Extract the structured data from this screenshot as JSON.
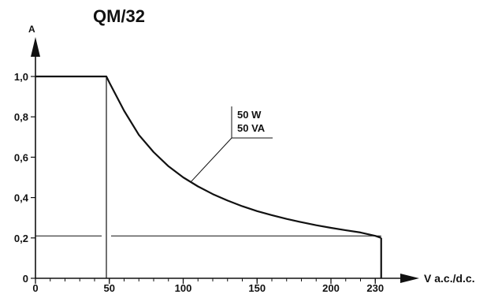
{
  "chart_data": {
    "type": "line",
    "title": "QM/32",
    "xlabel": "V a.c./d.c.",
    "ylabel": "A",
    "xlim": [
      0,
      235
    ],
    "ylim": [
      0,
      1.0
    ],
    "x_ticks": [
      0,
      50,
      100,
      150,
      200,
      230
    ],
    "x_tick_labels": [
      "0",
      "50",
      "100",
      "150",
      "200",
      "230"
    ],
    "y_ticks": [
      0,
      0.2,
      0.4,
      0.6,
      0.8,
      1.0
    ],
    "y_tick_labels": [
      "0",
      "0,2",
      "0,4",
      "0,6",
      "0,8",
      "1,0"
    ],
    "grid": false,
    "series": [
      {
        "values_x": [
          0,
          48,
          50,
          60,
          70,
          80,
          90,
          100,
          110,
          120,
          130,
          140,
          150,
          160,
          170,
          180,
          190,
          200,
          210,
          220,
          230,
          234
        ],
        "values_y": [
          1.0,
          1.0,
          0.97,
          0.83,
          0.71,
          0.625,
          0.555,
          0.5,
          0.455,
          0.417,
          0.385,
          0.357,
          0.333,
          0.313,
          0.294,
          0.278,
          0.263,
          0.25,
          0.238,
          0.227,
          0.21,
          0.2
        ],
        "color": "#111111"
      }
    ],
    "reference_lines": {
      "vertical_x": 48,
      "horizontal_y": 0.21,
      "end_drop_x": 234
    },
    "annotation": {
      "lines": [
        "50 W",
        "50 VA"
      ],
      "pointer_x": 105
    }
  }
}
